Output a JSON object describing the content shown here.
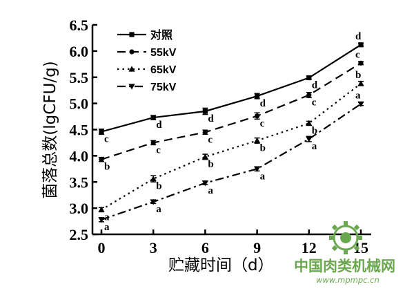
{
  "chart_data": {
    "type": "line",
    "title": "",
    "xlabel": "贮藏时间（d）",
    "ylabel": "菌落总数(lgCFU/g)",
    "x": [
      0,
      3,
      6,
      9,
      12,
      15
    ],
    "xticks": [
      "0",
      "3",
      "6",
      "9",
      "12",
      "15"
    ],
    "yticks": [
      "2.5",
      "3.0",
      "3.5",
      "4.0",
      "4.5",
      "5.0",
      "5.5",
      "6.0",
      "6.5"
    ],
    "xlim": [
      0,
      15
    ],
    "ylim": [
      2.5,
      6.5
    ],
    "grid": false,
    "legend_position": "top-left",
    "series": [
      {
        "name": "对照",
        "values": [
          4.46,
          4.73,
          4.85,
          5.14,
          5.49,
          6.12
        ],
        "errors": [
          0.05,
          0.04,
          0.06,
          0.05,
          0.03,
          0.03
        ],
        "labels": [
          "c",
          "d",
          "d",
          "d",
          "d",
          "d"
        ],
        "marker": "square",
        "line": "solid"
      },
      {
        "name": "55kV",
        "values": [
          3.93,
          4.25,
          4.45,
          4.76,
          5.16,
          5.77
        ],
        "errors": [
          0.04,
          0.04,
          0.04,
          0.06,
          0.05,
          0.03
        ],
        "labels": [
          "b",
          "c",
          "c",
          "c",
          "c",
          "c"
        ],
        "marker": "circle",
        "line": "dashed"
      },
      {
        "name": "65kV",
        "values": [
          2.97,
          3.56,
          3.98,
          4.29,
          4.62,
          5.38
        ],
        "errors": [
          0.04,
          0.06,
          0.05,
          0.05,
          0.04,
          0.04
        ],
        "labels": [
          "a",
          "b",
          "b",
          "b",
          "b",
          "b"
        ],
        "marker": "triangle-up",
        "line": "dotted"
      },
      {
        "name": "75kV",
        "values": [
          2.78,
          3.12,
          3.48,
          3.75,
          4.32,
          4.99
        ],
        "errors": [
          0.04,
          0.03,
          0.03,
          0.04,
          0.05,
          0.03
        ],
        "labels": [
          "a",
          "a",
          "a",
          "a",
          "a",
          "a"
        ],
        "marker": "triangle-down",
        "line": "dash-dot"
      }
    ]
  },
  "watermark": {
    "site_name": "中国肉类机械网",
    "url": "www.mpmpc.cn",
    "color": "#6aa84f"
  }
}
